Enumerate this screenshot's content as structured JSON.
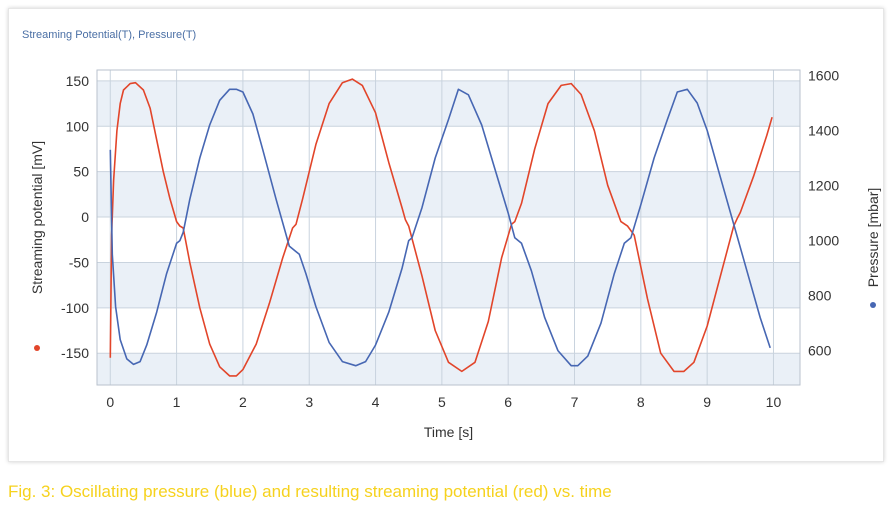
{
  "panel": {
    "title": "Streaming Potential(T), Pressure(T)"
  },
  "caption": "Fig. 3: Oscillating pressure (blue) and resulting streaming potential (red) vs. time",
  "colors": {
    "streaming": "#e2452a",
    "pressure": "#4767b3",
    "band": "#eaf0f7",
    "grid": "#c9d3de",
    "caption": "#f6d21e"
  },
  "chart_data": {
    "type": "line",
    "xlabel": "Time [s]",
    "ylabel_left": "Streaming potential [mV]",
    "ylabel_right": "Pressure [mbar]",
    "xlim": [
      -0.2,
      10.4
    ],
    "ylim_left": [
      -185,
      162
    ],
    "ylim_right": [
      475,
      1620
    ],
    "x_ticks": [
      "0",
      "1",
      "2",
      "3",
      "4",
      "5",
      "6",
      "7",
      "8",
      "9",
      "10"
    ],
    "y_left_ticks": [
      "150",
      "100",
      "50",
      "0",
      "-50",
      "-100",
      "-150"
    ],
    "y_right_ticks": [
      "1600",
      "1400",
      "1200",
      "1000",
      "800",
      "600"
    ],
    "grid": true,
    "series": [
      {
        "name": "Streaming potential [mV]",
        "axis": "left",
        "x": [
          0.0,
          0.02,
          0.05,
          0.1,
          0.15,
          0.2,
          0.3,
          0.38,
          0.5,
          0.6,
          0.7,
          0.8,
          0.9,
          1.0,
          1.05,
          1.1,
          1.2,
          1.35,
          1.5,
          1.65,
          1.8,
          1.9,
          2.0,
          2.2,
          2.4,
          2.6,
          2.75,
          2.8,
          2.9,
          3.1,
          3.3,
          3.5,
          3.65,
          3.8,
          4.0,
          4.2,
          4.4,
          4.45,
          4.5,
          4.7,
          4.9,
          5.1,
          5.3,
          5.5,
          5.7,
          5.9,
          6.05,
          6.1,
          6.2,
          6.4,
          6.6,
          6.8,
          6.95,
          7.1,
          7.3,
          7.5,
          7.7,
          7.8,
          7.9,
          8.1,
          8.3,
          8.5,
          8.65,
          8.8,
          9.0,
          9.2,
          9.4,
          9.45,
          9.5,
          9.7,
          9.9,
          9.98
        ],
        "y": [
          -155,
          -20,
          40,
          95,
          125,
          140,
          147,
          148,
          140,
          120,
          85,
          50,
          20,
          -5,
          -10,
          -12,
          -50,
          -100,
          -140,
          -165,
          -175,
          -175,
          -168,
          -140,
          -95,
          -45,
          -12,
          -8,
          20,
          80,
          125,
          148,
          152,
          145,
          115,
          60,
          10,
          -3,
          -10,
          -65,
          -125,
          -160,
          -170,
          -160,
          -115,
          -45,
          -8,
          -5,
          15,
          75,
          125,
          145,
          147,
          135,
          95,
          35,
          -5,
          -10,
          -20,
          -90,
          -150,
          -170,
          -170,
          -160,
          -120,
          -65,
          -10,
          -2,
          5,
          45,
          90,
          110
        ]
      },
      {
        "name": "Pressure [mbar]",
        "axis": "right",
        "x": [
          0.0,
          0.03,
          0.08,
          0.15,
          0.25,
          0.35,
          0.45,
          0.55,
          0.7,
          0.85,
          1.0,
          1.05,
          1.1,
          1.2,
          1.35,
          1.5,
          1.65,
          1.8,
          1.9,
          2.0,
          2.15,
          2.3,
          2.5,
          2.7,
          2.8,
          2.85,
          2.95,
          3.1,
          3.3,
          3.5,
          3.7,
          3.85,
          4.0,
          4.2,
          4.4,
          4.5,
          4.55,
          4.7,
          4.9,
          5.1,
          5.25,
          5.4,
          5.6,
          5.8,
          6.0,
          6.1,
          6.2,
          6.35,
          6.55,
          6.75,
          6.95,
          7.05,
          7.2,
          7.4,
          7.6,
          7.75,
          7.85,
          8.0,
          8.2,
          8.4,
          8.55,
          8.7,
          8.85,
          9.0,
          9.2,
          9.4,
          9.6,
          9.8,
          9.95
        ],
        "y": [
          1330,
          950,
          760,
          640,
          570,
          550,
          560,
          620,
          740,
          880,
          990,
          1000,
          1030,
          1150,
          1300,
          1420,
          1510,
          1550,
          1550,
          1540,
          1460,
          1330,
          1150,
          980,
          960,
          950,
          880,
          760,
          630,
          560,
          545,
          560,
          620,
          740,
          900,
          1000,
          1010,
          1120,
          1300,
          1440,
          1550,
          1530,
          1420,
          1260,
          1100,
          1010,
          990,
          890,
          720,
          600,
          545,
          545,
          580,
          700,
          880,
          990,
          1010,
          1130,
          1300,
          1440,
          1540,
          1550,
          1500,
          1400,
          1230,
          1060,
          890,
          720,
          610
        ]
      }
    ]
  }
}
